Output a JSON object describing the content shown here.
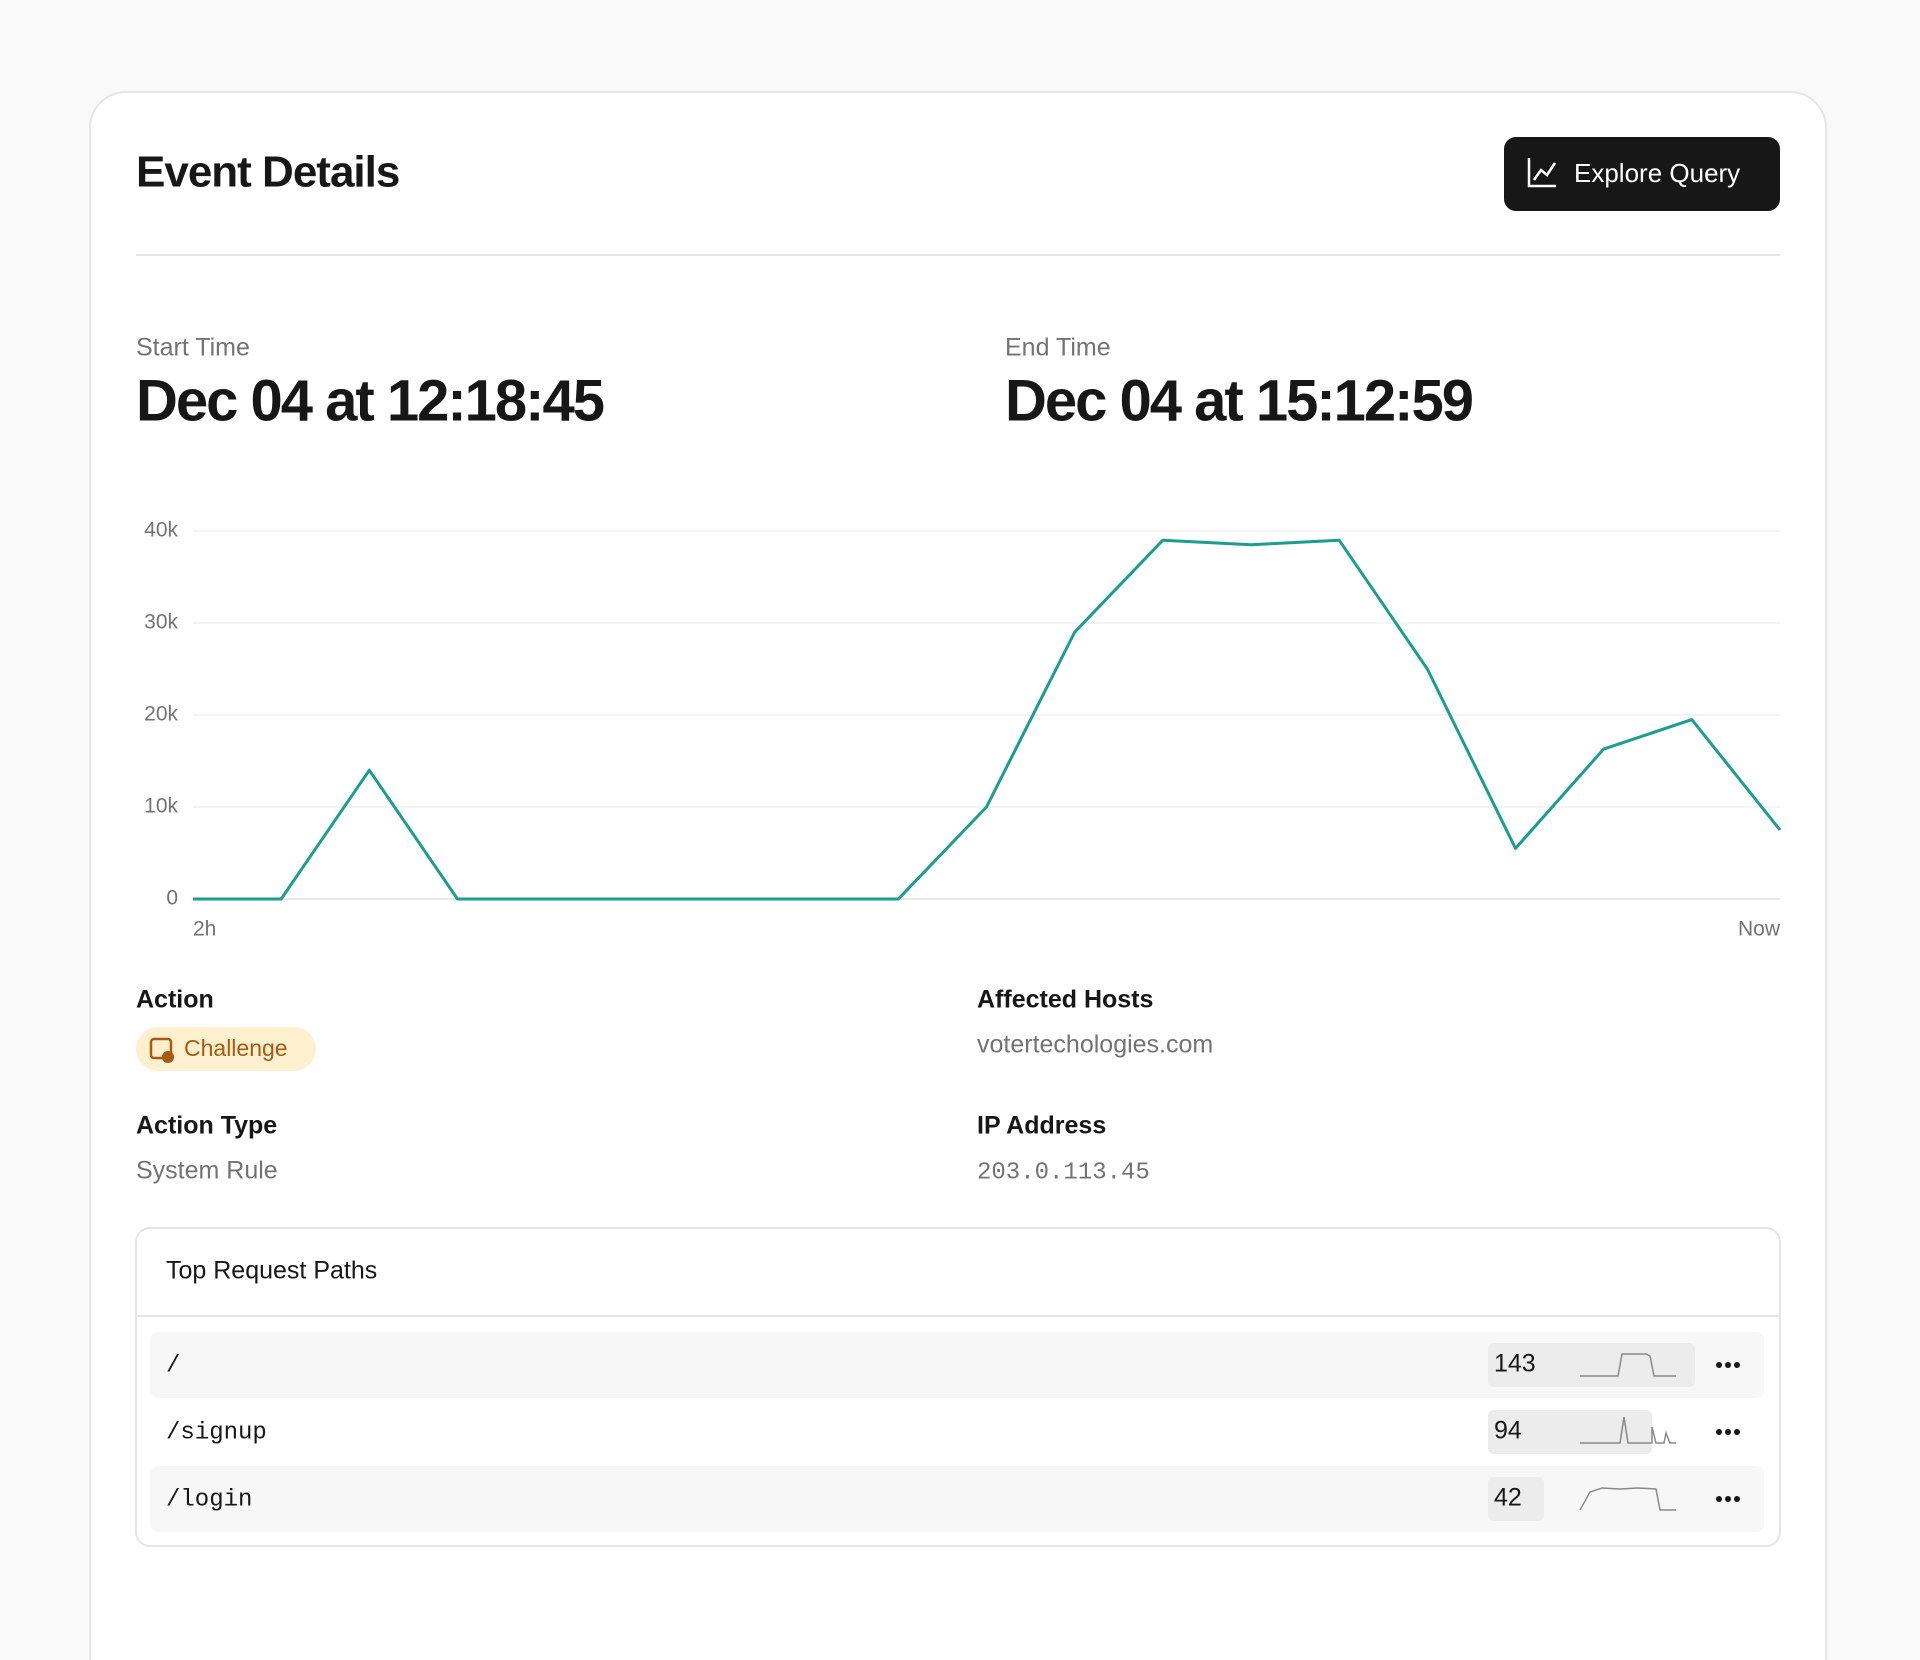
{
  "header": {
    "title": "Event Details",
    "button": "Explore Query"
  },
  "times": [
    {
      "label": "Start Time",
      "value": "Dec 04 at 12:18:45"
    },
    {
      "label": "End Time",
      "value": "Dec 04 at 15:12:59"
    }
  ],
  "chart_data": {
    "type": "line",
    "categories": [
      "2h",
      null,
      null,
      null,
      null,
      null,
      null,
      null,
      null,
      null,
      null,
      null,
      null,
      null,
      null,
      null,
      null,
      null,
      "Now"
    ],
    "series": [
      {
        "color": "#1a9e8f",
        "values": [
          0,
          0,
          14000,
          0,
          0,
          0,
          0,
          0,
          0,
          10000,
          29000,
          39000,
          38500,
          39000,
          25000,
          5500,
          16300,
          19500,
          7500
        ]
      }
    ],
    "ylim": [
      0,
      40000
    ],
    "yticks": [
      0,
      {
        "value": 10000,
        "label": "10k"
      },
      {
        "value": 20000,
        "label": "20k"
      },
      {
        "value": 30000,
        "label": "30k"
      },
      {
        "value": 40000,
        "label": "40k"
      }
    ],
    "grid": true
  },
  "details": [
    {
      "label": "Action",
      "value": "Challenge"
    },
    {
      "label": "Affected Hosts",
      "value": "votertechologies.com"
    },
    {
      "label": "Action Type",
      "value": "System Rule"
    },
    {
      "label": "IP Address",
      "value": "203.0.113.45"
    }
  ],
  "table": {
    "title": "Top Request Paths",
    "rows": [
      [
        "/",
        143
      ],
      [
        "/signup",
        94
      ],
      [
        "/login",
        42
      ]
    ]
  }
}
